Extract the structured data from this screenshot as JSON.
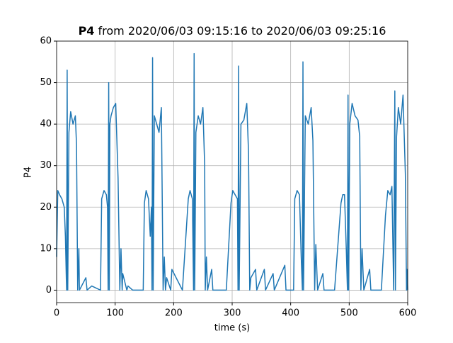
{
  "chart_data": {
    "type": "line",
    "title_bold": "P4",
    "title": "from 2020/06/03 09:15:16 to 2020/06/03 09:25:16",
    "x_label": "time (s)",
    "y_label": "P4",
    "x": [
      0,
      2,
      5,
      9,
      13,
      15,
      17,
      18,
      19,
      21,
      24,
      28,
      32,
      34,
      36,
      38,
      39,
      50,
      52,
      60,
      75,
      77,
      81,
      85,
      87,
      88,
      89,
      90,
      91,
      93,
      97,
      101,
      105,
      108,
      110,
      112,
      113,
      120,
      122,
      130,
      148,
      150,
      153,
      157,
      160,
      162,
      163,
      164,
      165,
      167,
      171,
      175,
      179,
      182,
      184,
      186,
      188,
      195,
      197,
      215,
      225,
      228,
      232,
      234,
      235,
      236,
      238,
      242,
      246,
      250,
      253,
      254,
      256,
      258,
      265,
      267,
      290,
      298,
      301,
      305,
      309,
      310,
      311,
      312,
      315,
      320,
      325,
      328,
      330,
      332,
      340,
      342,
      355,
      357,
      370,
      372,
      390,
      392,
      405,
      407,
      411,
      415,
      418,
      420,
      421,
      422,
      425,
      430,
      435,
      438,
      441,
      443,
      446,
      455,
      457,
      475,
      486,
      489,
      492,
      495,
      497,
      498,
      499,
      501,
      505,
      510,
      515,
      518,
      520,
      522,
      525,
      535,
      537,
      555,
      562,
      566,
      570,
      573,
      576,
      578,
      579,
      581,
      584,
      588,
      592,
      596,
      598,
      599,
      600
    ],
    "values": [
      8,
      24,
      23,
      22,
      20,
      13,
      0,
      53,
      0,
      38,
      43,
      40,
      42,
      35,
      0,
      10,
      0,
      3,
      0,
      1,
      0,
      22,
      24,
      23,
      20,
      0,
      50,
      0,
      40,
      42,
      44,
      45,
      27,
      0,
      10,
      0,
      4,
      0,
      1,
      0,
      0,
      21,
      24,
      22,
      13,
      20,
      0,
      56,
      0,
      42,
      40,
      38,
      44,
      0,
      8,
      0,
      3,
      0,
      5,
      0,
      22,
      24,
      22,
      0,
      57,
      0,
      38,
      42,
      40,
      44,
      30,
      0,
      8,
      0,
      5,
      0,
      0,
      21,
      24,
      23,
      22,
      0,
      54,
      0,
      40,
      41,
      45,
      33,
      0,
      3,
      5,
      0,
      5,
      0,
      4,
      0,
      6,
      0,
      0,
      22,
      24,
      23,
      8,
      0,
      55,
      0,
      42,
      40,
      44,
      36,
      0,
      11,
      0,
      4,
      0,
      0,
      21,
      23,
      23,
      10,
      0,
      47,
      0,
      40,
      45,
      42,
      41,
      37,
      0,
      10,
      0,
      5,
      0,
      0,
      18,
      24,
      23,
      25,
      0,
      48,
      0,
      37,
      44,
      40,
      47,
      28,
      0,
      5,
      0
    ],
    "color": "#1f77b4",
    "xlim": [
      0,
      600
    ],
    "xticks": [
      0,
      100,
      200,
      300,
      400,
      500,
      600
    ],
    "ylim": [
      -3,
      60
    ],
    "yticks": [
      0,
      10,
      20,
      30,
      40,
      50,
      60
    ],
    "grid": true
  }
}
